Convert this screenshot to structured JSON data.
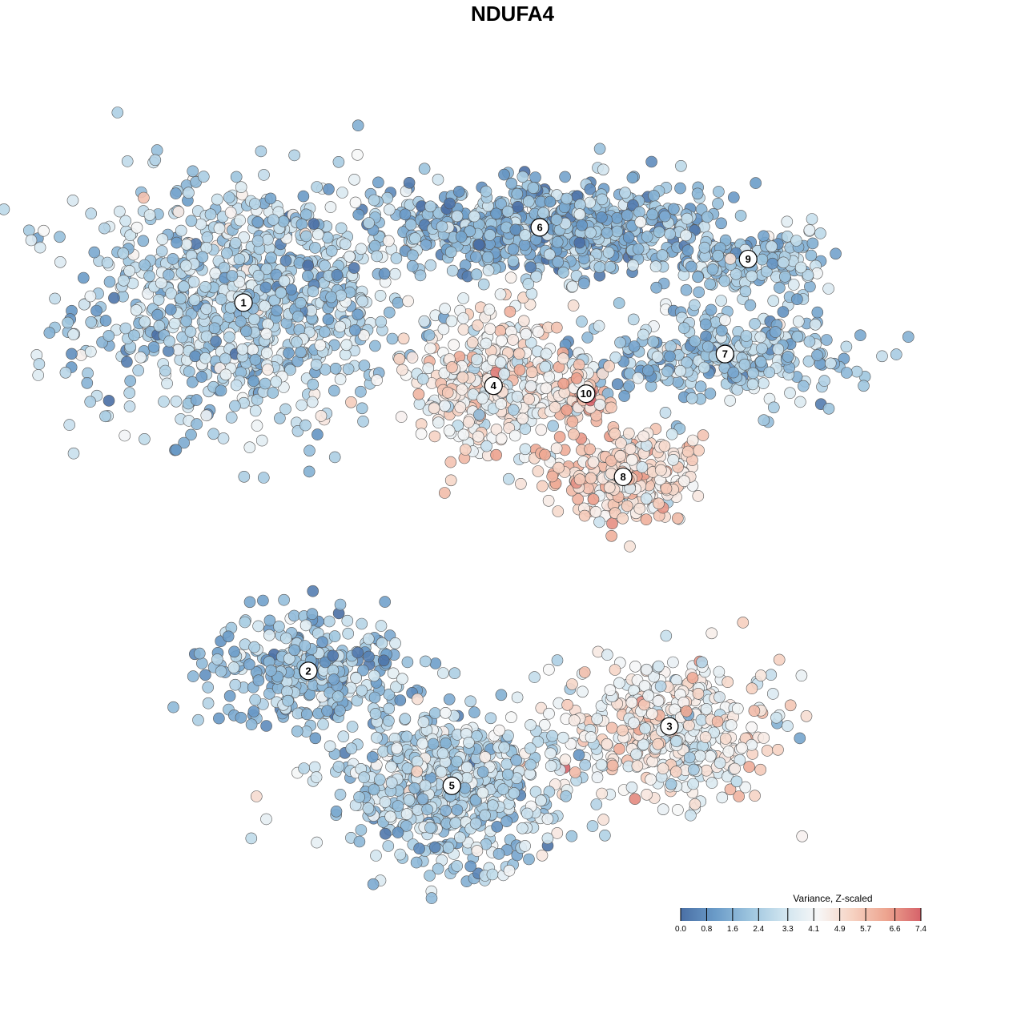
{
  "chart_data": {
    "type": "scatter",
    "title": "NDUFA4",
    "xlabel": "",
    "ylabel": "",
    "grid": false,
    "colorbar": {
      "title": "Variance, Z-scaled",
      "ticks": [
        "0.0",
        "0.8",
        "1.6",
        "2.4",
        "3.3",
        "4.1",
        "4.9",
        "5.7",
        "6.6",
        "7.4"
      ],
      "min": 0.0,
      "max": 7.4,
      "colors": [
        "#4a6fa5",
        "#6a9bc8",
        "#9cc4de",
        "#cfe4ef",
        "#f7f7f7",
        "#f6d2c2",
        "#eda48f",
        "#d6636a"
      ],
      "placement": "bottom-right"
    },
    "clusters": [
      {
        "label": "1",
        "x": -62,
        "y": 55,
        "spread_x": 18,
        "spread_y": 16,
        "mean_value": 2.6,
        "n": 900
      },
      {
        "label": "2",
        "x": -48,
        "y": -38,
        "spread_x": 11,
        "spread_y": 7,
        "mean_value": 2.0,
        "n": 300
      },
      {
        "label": "3",
        "x": 30,
        "y": -52,
        "spread_x": 12,
        "spread_y": 9,
        "mean_value": 4.2,
        "n": 450
      },
      {
        "label": "4",
        "x": -8,
        "y": 34,
        "spread_x": 9,
        "spread_y": 9,
        "mean_value": 4.3,
        "n": 380
      },
      {
        "label": "5",
        "x": -17,
        "y": -67,
        "spread_x": 12,
        "spread_y": 9,
        "mean_value": 2.6,
        "n": 600
      },
      {
        "label": "6",
        "x": 2,
        "y": 74,
        "spread_x": 18,
        "spread_y": 6,
        "mean_value": 1.9,
        "n": 700
      },
      {
        "label": "7",
        "x": 42,
        "y": 42,
        "spread_x": 14,
        "spread_y": 6,
        "mean_value": 2.2,
        "n": 300
      },
      {
        "label": "8",
        "x": 20,
        "y": 11,
        "spread_x": 8,
        "spread_y": 6,
        "mean_value": 5.0,
        "n": 260
      },
      {
        "label": "9",
        "x": 47,
        "y": 66,
        "spread_x": 9,
        "spread_y": 4,
        "mean_value": 2.3,
        "n": 160
      },
      {
        "label": "10",
        "x": 12,
        "y": 32,
        "spread_x": 3,
        "spread_y": 4,
        "mean_value": 5.3,
        "n": 60
      }
    ],
    "xlim": [
      -80,
      80
    ],
    "ylim": [
      -90,
      95
    ]
  }
}
